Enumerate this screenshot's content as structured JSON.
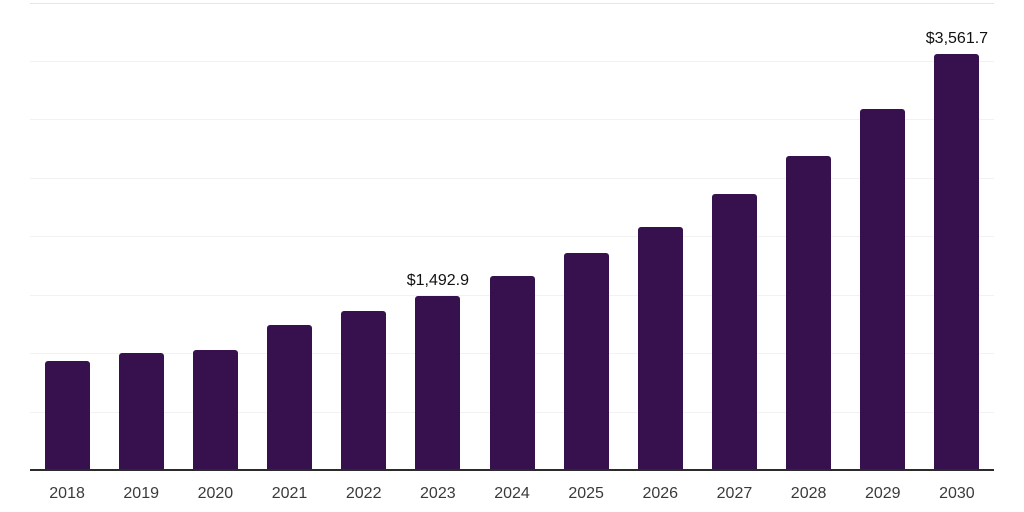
{
  "chart_data": {
    "type": "bar",
    "title": "",
    "xlabel": "",
    "ylabel": "",
    "categories": [
      "2018",
      "2019",
      "2020",
      "2021",
      "2022",
      "2023",
      "2024",
      "2025",
      "2026",
      "2027",
      "2028",
      "2029",
      "2030"
    ],
    "values": [
      930,
      1005,
      1025,
      1240,
      1360,
      1492.9,
      1660,
      1855,
      2075,
      2360,
      2685,
      3085,
      3561.7
    ],
    "data_labels": {
      "2023": "$1,492.9",
      "2030": "$3,561.7"
    },
    "ylim": [
      0,
      4000
    ],
    "gridline_step": 500,
    "grid": true,
    "legend": false,
    "y_axis_labels_visible": false,
    "colors": {
      "bar": "#36114d",
      "axis_line": "#2b2b2b",
      "gridline": "#f2f2f2",
      "top_gridline": "#e6e6e6",
      "tick_label": "#3a3a3a",
      "data_label": "#111111",
      "background": "#ffffff"
    }
  }
}
